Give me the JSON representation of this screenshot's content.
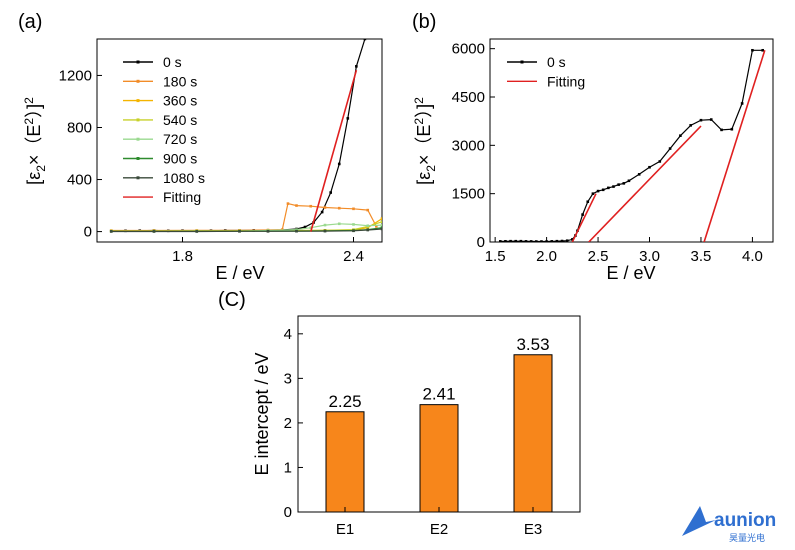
{
  "chart_data": [
    {
      "panel": "(a)",
      "type": "line",
      "xlabel": "E / eV",
      "ylabel_base": "[ε",
      "ylabel_sub": "2",
      "ylabel_mid": "×（E",
      "ylabel_sup": "2",
      "ylabel_end": "）]",
      "ylabel_sup2": "2",
      "xlim": [
        1.5,
        2.5
      ],
      "ylim": [
        -80,
        1480
      ],
      "xticks": [
        {
          "v": 1.8,
          "t": "1.8"
        },
        {
          "v": 2.4,
          "t": "2.4"
        }
      ],
      "yticks": [
        {
          "v": 0,
          "t": "0"
        },
        {
          "v": 400,
          "t": "400"
        },
        {
          "v": 800,
          "t": "800"
        },
        {
          "v": 1200,
          "t": "1200"
        }
      ],
      "legend_position": "top-left",
      "series": [
        {
          "name": "0 s",
          "color": "#000000",
          "x": [
            1.55,
            1.6,
            1.65,
            1.7,
            1.75,
            1.8,
            1.85,
            1.9,
            1.95,
            2.0,
            2.05,
            2.1,
            2.15,
            2.2,
            2.23,
            2.26,
            2.29,
            2.32,
            2.35,
            2.38,
            2.41,
            2.44,
            2.47,
            2.5
          ],
          "y": [
            5,
            6,
            7,
            8,
            6,
            7,
            6,
            7,
            8,
            8,
            9,
            10,
            12,
            20,
            35,
            70,
            150,
            300,
            520,
            870,
            1270,
            1480,
            1520,
            1520
          ]
        },
        {
          "name": "180 s",
          "color": "#f28c28",
          "x": [
            1.55,
            1.7,
            1.85,
            2.0,
            2.1,
            2.15,
            2.17,
            2.2,
            2.25,
            2.3,
            2.35,
            2.4,
            2.45,
            2.48
          ],
          "y": [
            8,
            8,
            9,
            10,
            12,
            15,
            215,
            200,
            195,
            185,
            180,
            175,
            165,
            40
          ]
        },
        {
          "name": "360 s",
          "color": "#f4b400",
          "x": [
            1.55,
            1.7,
            1.85,
            2.0,
            2.1,
            2.2,
            2.3,
            2.4,
            2.45,
            2.5
          ],
          "y": [
            5,
            5,
            6,
            6,
            7,
            8,
            10,
            12,
            30,
            100
          ]
        },
        {
          "name": "540 s",
          "color": "#c8d12a",
          "x": [
            1.55,
            1.7,
            1.85,
            2.0,
            2.1,
            2.2,
            2.3,
            2.4,
            2.45,
            2.5
          ],
          "y": [
            4,
            4,
            5,
            5,
            6,
            7,
            9,
            15,
            40,
            75
          ]
        },
        {
          "name": "720 s",
          "color": "#9ad98f",
          "x": [
            1.55,
            1.7,
            1.85,
            2.0,
            2.1,
            2.2,
            2.25,
            2.3,
            2.35,
            2.4,
            2.45,
            2.5
          ],
          "y": [
            3,
            3,
            4,
            4,
            8,
            15,
            30,
            50,
            60,
            55,
            45,
            50
          ]
        },
        {
          "name": "900 s",
          "color": "#2e8b2e",
          "x": [
            1.55,
            1.7,
            1.85,
            2.0,
            2.1,
            2.2,
            2.3,
            2.4,
            2.45,
            2.5
          ],
          "y": [
            2,
            2,
            2,
            3,
            3,
            4,
            5,
            8,
            15,
            30
          ]
        },
        {
          "name": "1080 s",
          "color": "#3a4a3a",
          "x": [
            1.55,
            1.7,
            1.85,
            2.0,
            2.1,
            2.2,
            2.3,
            2.4,
            2.45,
            2.5
          ],
          "y": [
            1,
            1,
            1,
            2,
            2,
            3,
            4,
            6,
            12,
            20
          ]
        },
        {
          "name": "Fitting",
          "color": "#e02020",
          "markers": false,
          "x": [
            2.25,
            2.41
          ],
          "y": [
            0,
            1240
          ]
        }
      ]
    },
    {
      "panel": "(b)",
      "type": "line",
      "xlabel": "E / eV",
      "ylabel_base": "[ε",
      "ylabel_sub": "2",
      "ylabel_mid": "×（E",
      "ylabel_sup": "2",
      "ylabel_end": "）]",
      "ylabel_sup2": "2",
      "xlim": [
        1.45,
        4.2
      ],
      "ylim": [
        0,
        6300
      ],
      "xticks": [
        {
          "v": 1.5,
          "t": "1.5"
        },
        {
          "v": 2.0,
          "t": "2.0"
        },
        {
          "v": 2.5,
          "t": "2.5"
        },
        {
          "v": 3.0,
          "t": "3.0"
        },
        {
          "v": 3.5,
          "t": "3.5"
        },
        {
          "v": 4.0,
          "t": "4.0"
        }
      ],
      "yticks": [
        {
          "v": 0,
          "t": "0"
        },
        {
          "v": 1500,
          "t": "1500"
        },
        {
          "v": 3000,
          "t": "3000"
        },
        {
          "v": 4500,
          "t": "4500"
        },
        {
          "v": 6000,
          "t": "6000"
        }
      ],
      "legend_position": "top-left",
      "series": [
        {
          "name": "0 s",
          "color": "#000000",
          "x": [
            1.55,
            1.6,
            1.65,
            1.7,
            1.75,
            1.8,
            1.85,
            1.9,
            1.95,
            2.0,
            2.05,
            2.1,
            2.15,
            2.2,
            2.25,
            2.28,
            2.3,
            2.35,
            2.4,
            2.45,
            2.5,
            2.55,
            2.6,
            2.65,
            2.7,
            2.75,
            2.8,
            2.9,
            3.0,
            3.1,
            3.2,
            3.3,
            3.4,
            3.5,
            3.6,
            3.7,
            3.8,
            3.9,
            4.0,
            4.1
          ],
          "y": [
            20,
            22,
            25,
            25,
            25,
            20,
            18,
            15,
            15,
            15,
            20,
            25,
            30,
            40,
            80,
            200,
            350,
            850,
            1250,
            1500,
            1580,
            1620,
            1680,
            1720,
            1780,
            1820,
            1900,
            2100,
            2320,
            2500,
            2900,
            3300,
            3620,
            3780,
            3800,
            3480,
            3500,
            4300,
            5950,
            5950
          ]
        },
        {
          "name": "Fitting",
          "color": "#e02020",
          "markers": false,
          "x": [
            2.25,
            2.48
          ],
          "y": [
            0,
            1500
          ]
        },
        {
          "name": "",
          "color": "#e02020",
          "markers": false,
          "x": [
            2.41,
            3.5
          ],
          "y": [
            0,
            3600
          ]
        },
        {
          "name": "",
          "color": "#e02020",
          "markers": false,
          "x": [
            3.53,
            4.12
          ],
          "y": [
            0,
            5950
          ]
        }
      ]
    },
    {
      "panel": "(C)",
      "type": "bar",
      "ylabel": "E intercept / eV",
      "ylim": [
        0,
        4.4
      ],
      "yticks": [
        {
          "v": 0,
          "t": "0"
        },
        {
          "v": 1,
          "t": "1"
        },
        {
          "v": 2,
          "t": "2"
        },
        {
          "v": 3,
          "t": "3"
        },
        {
          "v": 4,
          "t": "4"
        }
      ],
      "categories": [
        "E1",
        "E2",
        "E3"
      ],
      "values": [
        2.25,
        2.41,
        3.53
      ],
      "value_labels": [
        "2.25",
        "2.41",
        "3.53"
      ],
      "bar_color": "#f7861b"
    }
  ],
  "logo": {
    "text": "aunion",
    "subtext": "昊量光电",
    "color": "#2f6fd0"
  }
}
